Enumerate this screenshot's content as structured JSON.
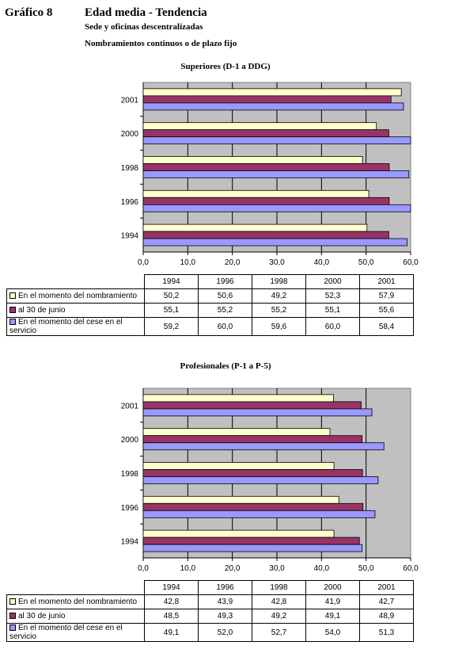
{
  "header": {
    "label": "Gráfico 8",
    "title": "Edad media - Tendencia",
    "subtitle1": "Sede y oficinas descentralizadas",
    "subtitle2": "Nombramientos continuos o de plazo fijo"
  },
  "chart_data": [
    {
      "type": "bar",
      "orientation": "horizontal",
      "title": "Superiores (D-1 a DDG)",
      "categories": [
        "1994",
        "1996",
        "1998",
        "2000",
        "2001"
      ],
      "xlim": [
        0,
        60
      ],
      "xticks": [
        "0,0",
        "10,0",
        "20,0",
        "30,0",
        "40,0",
        "50,0",
        "60,0"
      ],
      "grid": true,
      "series": [
        {
          "name": "En el momento del nombramiento",
          "color": "#ffffcc",
          "values": [
            50.2,
            50.6,
            49.2,
            52.3,
            57.9
          ],
          "labels": [
            "50,2",
            "50,6",
            "49,2",
            "52,3",
            "57,9"
          ]
        },
        {
          "name": "al 30 de junio",
          "color": "#993366",
          "values": [
            55.1,
            55.2,
            55.2,
            55.1,
            55.6
          ],
          "labels": [
            "55,1",
            "55,2",
            "55,2",
            "55,1",
            "55,6"
          ]
        },
        {
          "name": "En el momento del cese en el servicio",
          "color": "#9999ff",
          "values": [
            59.2,
            60.0,
            59.6,
            60.0,
            58.4
          ],
          "labels": [
            "59,2",
            "60,0",
            "59,6",
            "60,0",
            "58,4"
          ]
        }
      ]
    },
    {
      "type": "bar",
      "orientation": "horizontal",
      "title": "Profesionales (P-1 a P-5)",
      "categories": [
        "1994",
        "1996",
        "1998",
        "2000",
        "2001"
      ],
      "xlim": [
        0,
        60
      ],
      "xticks": [
        "0,0",
        "10,0",
        "20,0",
        "30,0",
        "40,0",
        "50,0",
        "60,0"
      ],
      "grid": true,
      "series": [
        {
          "name": "En el momento del nombramiento",
          "color": "#ffffcc",
          "values": [
            42.8,
            43.9,
            42.8,
            41.9,
            42.7
          ],
          "labels": [
            "42,8",
            "43,9",
            "42,8",
            "41,9",
            "42,7"
          ]
        },
        {
          "name": "al 30 de junio",
          "color": "#993366",
          "values": [
            48.5,
            49.3,
            49.2,
            49.1,
            48.9
          ],
          "labels": [
            "48,5",
            "49,3",
            "49,2",
            "49,1",
            "48,9"
          ]
        },
        {
          "name": "En el momento del cese en el servicio",
          "color": "#9999ff",
          "values": [
            49.1,
            52.0,
            52.7,
            54.0,
            51.3
          ],
          "labels": [
            "49,1",
            "52,0",
            "52,7",
            "54,0",
            "51,3"
          ]
        }
      ]
    }
  ]
}
